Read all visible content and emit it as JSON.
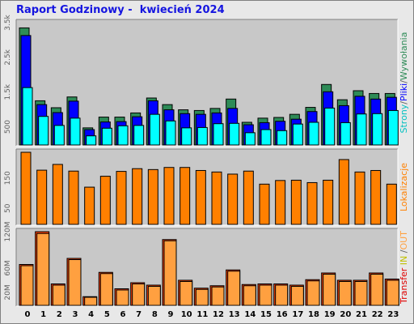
{
  "title": "Raport Godzinowy -  kwiecień 2024",
  "colors": {
    "background": "#e8e8e8",
    "plot_background": "#c8c8c8",
    "hits": "#2e8b57",
    "files": "#0000ff",
    "pages": "#00ffff",
    "visits": "#ff8000",
    "kbytes_in": "#ff4000",
    "kbytes_out": "#ffa040",
    "title": "#1515e0"
  },
  "legends": {
    "top": [
      {
        "text": "Strony",
        "color": "#00c0c0"
      },
      {
        "text": "/",
        "color": "#606060"
      },
      {
        "text": "Pliki",
        "color": "#0000ff"
      },
      {
        "text": "/",
        "color": "#606060"
      },
      {
        "text": "Wywołania",
        "color": "#2e8b57"
      }
    ],
    "middle": [
      {
        "text": "Lokalizacje",
        "color": "#ff8000"
      }
    ],
    "bottom": [
      {
        "text": "Transfer",
        "color": "#e00000"
      },
      {
        "text": " IN",
        "color": "#c0c000"
      },
      {
        "text": " /",
        "color": "#606060"
      },
      {
        "text": "OUT",
        "color": "#ffa040"
      }
    ]
  },
  "chart_data": [
    {
      "type": "bar",
      "panel": "requests",
      "categories": [
        "0",
        "1",
        "2",
        "3",
        "4",
        "5",
        "6",
        "7",
        "8",
        "9",
        "10",
        "11",
        "12",
        "13",
        "14",
        "15",
        "16",
        "17",
        "18",
        "19",
        "20",
        "21",
        "22",
        "23"
      ],
      "ylim": [
        0,
        3500
      ],
      "yticks": [
        "500",
        "1.5k",
        "2.5k",
        "3.5k"
      ],
      "ytick_values": [
        500,
        1500,
        2500,
        3500
      ],
      "series": [
        {
          "name": "Wywołania",
          "values": [
            3350,
            1250,
            1050,
            1360,
            470,
            780,
            780,
            900,
            1330,
            1140,
            990,
            970,
            1030,
            1300,
            630,
            750,
            770,
            860,
            1060,
            1720,
            1280,
            1540,
            1460,
            1460
          ]
        },
        {
          "name": "Pliki",
          "values": [
            3130,
            1140,
            910,
            1240,
            420,
            640,
            650,
            790,
            1250,
            990,
            880,
            860,
            900,
            1030,
            560,
            620,
            660,
            720,
            940,
            1510,
            1110,
            1380,
            1300,
            1350
          ]
        },
        {
          "name": "Strony",
          "values": [
            1630,
            800,
            540,
            750,
            240,
            460,
            530,
            540,
            860,
            670,
            470,
            480,
            590,
            600,
            330,
            420,
            390,
            580,
            630,
            1040,
            620,
            870,
            880,
            970
          ]
        }
      ]
    },
    {
      "type": "bar",
      "panel": "visits",
      "categories": [
        "0",
        "1",
        "2",
        "3",
        "4",
        "5",
        "6",
        "7",
        "8",
        "9",
        "10",
        "11",
        "12",
        "13",
        "14",
        "15",
        "16",
        "17",
        "18",
        "19",
        "20",
        "21",
        "22",
        "23"
      ],
      "ylim": [
        0,
        235
      ],
      "yticks": [
        "50",
        "150"
      ],
      "ytick_values": [
        50,
        150
      ],
      "series": [
        {
          "name": "Lokalizacje",
          "values": [
            235,
            176,
            195,
            173,
            120,
            156,
            172,
            181,
            178,
            185,
            185,
            175,
            170,
            163,
            173,
            130,
            142,
            143,
            135,
            143,
            211,
            170,
            175,
            130
          ]
        }
      ]
    },
    {
      "type": "bar",
      "panel": "transfer",
      "categories": [
        "0",
        "1",
        "2",
        "3",
        "4",
        "5",
        "6",
        "7",
        "8",
        "9",
        "10",
        "11",
        "12",
        "13",
        "14",
        "15",
        "16",
        "17",
        "18",
        "19",
        "20",
        "21",
        "22",
        "23"
      ],
      "ylim": [
        0,
        120
      ],
      "yticks": [
        "20M",
        "60M",
        "120M"
      ],
      "ytick_values": [
        20,
        60,
        120
      ],
      "series": [
        {
          "name": "IN",
          "values": [
            66,
            120,
            34,
            76,
            13,
            53,
            26,
            36,
            32,
            107,
            40,
            27,
            31,
            57,
            33,
            34,
            34,
            32,
            41,
            52,
            40,
            40,
            52,
            42
          ]
        },
        {
          "name": "OUT",
          "values": [
            64,
            117,
            32,
            74,
            12,
            51,
            24,
            34,
            30,
            105,
            38,
            25,
            29,
            55,
            31,
            32,
            32,
            30,
            39,
            50,
            38,
            38,
            50,
            40
          ]
        }
      ]
    }
  ]
}
